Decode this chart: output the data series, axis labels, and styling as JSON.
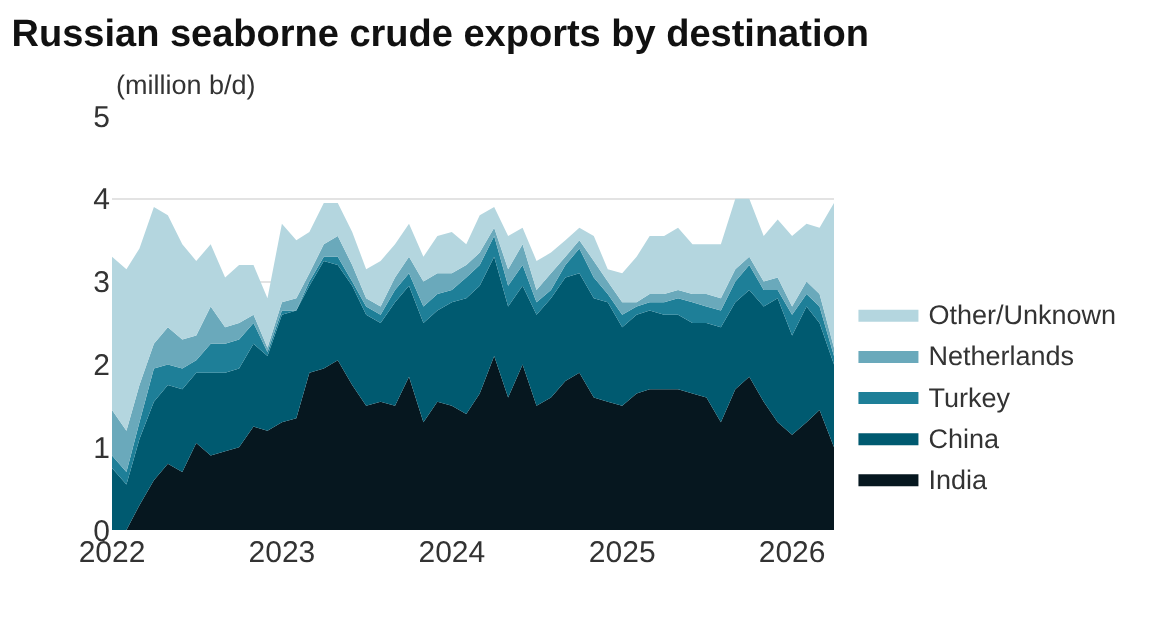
{
  "chart_data": {
    "type": "area",
    "title": "Russian seaborne crude exports by destination",
    "ylabel": "(million b/d)",
    "x": [
      "2022-01",
      "2022-02",
      "2022-03",
      "2022-04",
      "2022-05",
      "2022-06",
      "2022-07",
      "2022-08",
      "2022-09",
      "2022-10",
      "2022-11",
      "2022-12",
      "2023-01",
      "2023-02",
      "2023-03",
      "2023-04",
      "2023-05",
      "2023-06",
      "2023-07",
      "2023-08",
      "2023-09",
      "2023-10",
      "2023-11",
      "2023-12",
      "2024-01",
      "2024-02",
      "2024-03",
      "2024-04",
      "2024-05",
      "2024-06",
      "2024-07",
      "2024-08",
      "2024-09",
      "2024-10",
      "2024-11",
      "2024-12",
      "2025-01",
      "2025-02",
      "2025-03",
      "2025-04",
      "2025-05",
      "2025-06",
      "2025-07",
      "2025-08",
      "2025-09",
      "2025-10",
      "2025-11",
      "2025-12",
      "2026-01",
      "2026-02",
      "2026-03",
      "2026-04"
    ],
    "stacked": true,
    "series": [
      {
        "name": "India",
        "color": "#06171f",
        "values": [
          0,
          0,
          0.3,
          0.6,
          0.8,
          0.7,
          1.05,
          0.9,
          0.95,
          1.0,
          1.25,
          1.2,
          1.3,
          1.35,
          1.9,
          1.95,
          2.05,
          1.75,
          1.5,
          1.55,
          1.5,
          1.85,
          1.3,
          1.55,
          1.5,
          1.4,
          1.65,
          2.1,
          1.6,
          2.0,
          1.5,
          1.6,
          1.8,
          1.9,
          1.6,
          1.55,
          1.5,
          1.65,
          1.7,
          1.7,
          1.7,
          1.65,
          1.6,
          1.3,
          1.7,
          1.85,
          1.55,
          1.3,
          1.15,
          1.3,
          1.45,
          1.0
        ]
      },
      {
        "name": "China",
        "color": "#005a70",
        "values": [
          0.75,
          0.55,
          0.8,
          0.95,
          0.95,
          1.0,
          0.85,
          1.0,
          0.95,
          0.95,
          1.0,
          0.9,
          1.3,
          1.3,
          1.05,
          1.3,
          1.15,
          1.2,
          1.1,
          0.95,
          1.25,
          1.1,
          1.2,
          1.1,
          1.25,
          1.4,
          1.3,
          1.2,
          1.1,
          0.95,
          1.1,
          1.2,
          1.25,
          1.2,
          1.2,
          1.2,
          0.95,
          0.95,
          0.95,
          0.9,
          0.9,
          0.85,
          0.9,
          1.15,
          1.05,
          1.05,
          1.15,
          1.5,
          1.2,
          1.4,
          1.05,
          1.0
        ]
      },
      {
        "name": "Turkey",
        "color": "#1e7f98",
        "values": [
          0.15,
          0.15,
          0.2,
          0.4,
          0.25,
          0.25,
          0.15,
          0.35,
          0.35,
          0.35,
          0.25,
          0.05,
          0.05,
          0,
          0.05,
          0.05,
          0.1,
          0.05,
          0.1,
          0.1,
          0.15,
          0.15,
          0.2,
          0.2,
          0.15,
          0.25,
          0.25,
          0.25,
          0.25,
          0.25,
          0.15,
          0.1,
          0.15,
          0.3,
          0.25,
          0.1,
          0.15,
          0.1,
          0.1,
          0.15,
          0.2,
          0.25,
          0.2,
          0.2,
          0.25,
          0.3,
          0.2,
          0.1,
          0.25,
          0.15,
          0.2,
          0.1
        ]
      },
      {
        "name": "Netherlands",
        "color": "#6aa9bb",
        "values": [
          0.55,
          0.5,
          0.45,
          0.3,
          0.45,
          0.35,
          0.3,
          0.45,
          0.2,
          0.2,
          0.1,
          0.05,
          0.1,
          0.15,
          0.1,
          0.15,
          0.25,
          0.2,
          0.1,
          0.1,
          0.15,
          0.2,
          0.3,
          0.25,
          0.2,
          0.15,
          0.15,
          0.1,
          0.2,
          0.25,
          0.15,
          0.2,
          0.1,
          0.1,
          0.2,
          0.15,
          0.15,
          0.05,
          0.1,
          0.1,
          0.1,
          0.1,
          0.15,
          0.15,
          0.15,
          0.1,
          0.1,
          0.15,
          0.1,
          0.15,
          0.15,
          0.1
        ]
      },
      {
        "name": "Other/Unknown",
        "color": "#b4d6df",
        "values": [
          1.85,
          1.95,
          1.65,
          1.65,
          1.35,
          1.15,
          0.9,
          0.75,
          0.6,
          0.7,
          0.6,
          0.6,
          0.95,
          0.7,
          0.5,
          0.5,
          0.4,
          0.4,
          0.35,
          0.55,
          0.4,
          0.4,
          0.3,
          0.45,
          0.5,
          0.25,
          0.45,
          0.25,
          0.4,
          0.2,
          0.35,
          0.25,
          0.2,
          0.15,
          0.3,
          0.15,
          0.35,
          0.55,
          0.7,
          0.7,
          0.75,
          0.6,
          0.6,
          0.65,
          0.85,
          0.7,
          0.55,
          0.7,
          0.85,
          0.7,
          0.8,
          1.75
        ]
      }
    ],
    "xlim": [
      "2022-01",
      "2026-04"
    ],
    "xticks": [
      {
        "value": "2022-01",
        "label": "2022"
      },
      {
        "value": "2023-01",
        "label": "2023"
      },
      {
        "value": "2024-01",
        "label": "2024"
      },
      {
        "value": "2025-01",
        "label": "2025"
      },
      {
        "value": "2026-01",
        "label": "2026"
      }
    ],
    "ylim": [
      0,
      5
    ],
    "yticks": [
      0,
      1,
      2,
      3,
      4,
      5
    ],
    "grid": "y",
    "legend": "right"
  }
}
